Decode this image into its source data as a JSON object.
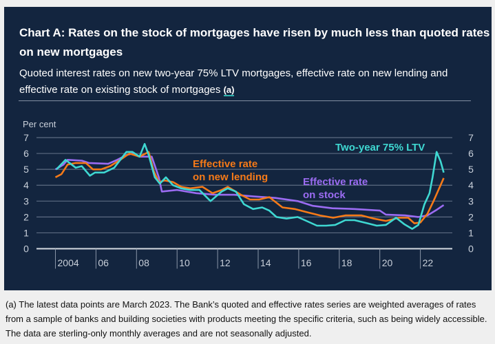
{
  "title": "Chart A: Rates on the stock of mortgages have risen by much less than quoted rates on new mortgages",
  "subtitle": "Quoted interest rates on new two-year 75% LTV mortgages, effective rate on new lending and effective rate on existing stock of mortgages",
  "subtitle_ref": "(a)",
  "footnote": "(a) The latest data points are March 2023. The Bank’s quoted and effective rates series are weighted averages of rates from a sample of banks and building societies with products meeting the specific criteria, such as being widely accessible. The data are sterling-only monthly averages and are not seasonally adjusted.",
  "colors": {
    "background": "#13253f",
    "quoted": "#3fd8d2",
    "new_lending": "#f67a18",
    "stock": "#9b6cf2"
  },
  "chart_data": {
    "type": "line",
    "ylabel": "Per cent",
    "ylim": [
      0,
      7
    ],
    "yticks": [
      "0",
      "1",
      "2",
      "3",
      "4",
      "5",
      "6",
      "7"
    ],
    "xlim": [
      2003.3,
      2024.0
    ],
    "xticks": [
      {
        "v": 2004,
        "label": "2004"
      },
      {
        "v": 2006,
        "label": "06"
      },
      {
        "v": 2008,
        "label": "08"
      },
      {
        "v": 2010,
        "label": "10"
      },
      {
        "v": 2012,
        "label": "12"
      },
      {
        "v": 2014,
        "label": "14"
      },
      {
        "v": 2016,
        "label": "16"
      },
      {
        "v": 2018,
        "label": "18"
      },
      {
        "v": 2020,
        "label": "20"
      },
      {
        "v": 2022,
        "label": "22"
      }
    ],
    "grid": true,
    "series": [
      {
        "name": "Two-year 75% LTV",
        "color_key": "quoted",
        "points": [
          [
            2004.05,
            5.0
          ],
          [
            2004.5,
            5.6
          ],
          [
            2005.0,
            5.1
          ],
          [
            2005.3,
            5.2
          ],
          [
            2005.7,
            4.6
          ],
          [
            2005.95,
            4.8
          ],
          [
            2006.4,
            4.8
          ],
          [
            2006.9,
            5.1
          ],
          [
            2007.5,
            6.1
          ],
          [
            2007.8,
            6.1
          ],
          [
            2008.15,
            5.8
          ],
          [
            2008.4,
            6.6
          ],
          [
            2008.6,
            5.9
          ],
          [
            2008.9,
            4.5
          ],
          [
            2009.15,
            4.1
          ],
          [
            2009.45,
            4.5
          ],
          [
            2009.8,
            4.0
          ],
          [
            2010.2,
            3.8
          ],
          [
            2010.65,
            3.7
          ],
          [
            2011.1,
            3.7
          ],
          [
            2011.65,
            3.0
          ],
          [
            2012.2,
            3.6
          ],
          [
            2012.5,
            3.8
          ],
          [
            2012.9,
            3.6
          ],
          [
            2013.3,
            2.8
          ],
          [
            2013.75,
            2.5
          ],
          [
            2014.2,
            2.6
          ],
          [
            2014.55,
            2.4
          ],
          [
            2014.9,
            2.0
          ],
          [
            2015.4,
            1.9
          ],
          [
            2015.95,
            2.0
          ],
          [
            2016.3,
            1.8
          ],
          [
            2016.9,
            1.45
          ],
          [
            2017.35,
            1.45
          ],
          [
            2017.8,
            1.5
          ],
          [
            2018.3,
            1.8
          ],
          [
            2018.75,
            1.8
          ],
          [
            2019.4,
            1.6
          ],
          [
            2019.85,
            1.45
          ],
          [
            2020.3,
            1.5
          ],
          [
            2020.8,
            1.95
          ],
          [
            2021.2,
            1.55
          ],
          [
            2021.6,
            1.25
          ],
          [
            2021.9,
            1.5
          ],
          [
            2022.2,
            2.8
          ],
          [
            2022.45,
            3.5
          ],
          [
            2022.6,
            4.5
          ],
          [
            2022.8,
            6.1
          ],
          [
            2023.0,
            5.5
          ],
          [
            2023.15,
            4.8
          ]
        ]
      },
      {
        "name": "Effective rate on new lending",
        "color_key": "new_lending",
        "points": [
          [
            2004.0,
            4.5
          ],
          [
            2004.3,
            4.7
          ],
          [
            2004.6,
            5.3
          ],
          [
            2005.0,
            5.4
          ],
          [
            2005.5,
            5.4
          ],
          [
            2005.85,
            5.0
          ],
          [
            2006.25,
            5.0
          ],
          [
            2006.7,
            5.2
          ],
          [
            2007.2,
            5.6
          ],
          [
            2007.65,
            6.0
          ],
          [
            2008.15,
            5.8
          ],
          [
            2008.6,
            6.1
          ],
          [
            2008.85,
            4.9
          ],
          [
            2009.1,
            4.2
          ],
          [
            2009.4,
            4.3
          ],
          [
            2009.8,
            4.2
          ],
          [
            2010.2,
            3.9
          ],
          [
            2010.65,
            3.8
          ],
          [
            2011.25,
            3.9
          ],
          [
            2011.75,
            3.5
          ],
          [
            2012.2,
            3.7
          ],
          [
            2012.5,
            3.9
          ],
          [
            2013.15,
            3.4
          ],
          [
            2013.6,
            3.1
          ],
          [
            2014.05,
            3.1
          ],
          [
            2014.55,
            3.25
          ],
          [
            2015.2,
            2.6
          ],
          [
            2015.8,
            2.5
          ],
          [
            2016.4,
            2.3
          ],
          [
            2017.05,
            2.1
          ],
          [
            2017.7,
            1.95
          ],
          [
            2018.3,
            2.1
          ],
          [
            2019.1,
            2.1
          ],
          [
            2019.7,
            1.9
          ],
          [
            2020.3,
            1.75
          ],
          [
            2020.95,
            1.95
          ],
          [
            2021.4,
            1.95
          ],
          [
            2021.7,
            1.6
          ],
          [
            2022.0,
            1.65
          ],
          [
            2022.35,
            2.2
          ],
          [
            2022.65,
            3.0
          ],
          [
            2023.15,
            4.45
          ]
        ]
      },
      {
        "name": "Effective rate on stock",
        "color_key": "stock",
        "points": [
          [
            2004.0,
            5.0
          ],
          [
            2004.4,
            5.3
          ],
          [
            2004.6,
            5.6
          ],
          [
            2005.3,
            5.55
          ],
          [
            2005.65,
            5.4
          ],
          [
            2006.6,
            5.35
          ],
          [
            2007.05,
            5.6
          ],
          [
            2007.5,
            5.9
          ],
          [
            2007.8,
            6.0
          ],
          [
            2008.15,
            5.8
          ],
          [
            2008.75,
            5.8
          ],
          [
            2009.1,
            4.5
          ],
          [
            2009.25,
            3.6
          ],
          [
            2010.0,
            3.7
          ],
          [
            2010.95,
            3.5
          ],
          [
            2011.9,
            3.4
          ],
          [
            2012.8,
            3.4
          ],
          [
            2013.75,
            3.3
          ],
          [
            2014.85,
            3.2
          ],
          [
            2015.95,
            3.0
          ],
          [
            2016.7,
            2.7
          ],
          [
            2017.65,
            2.55
          ],
          [
            2018.75,
            2.5
          ],
          [
            2020.0,
            2.4
          ],
          [
            2020.3,
            2.15
          ],
          [
            2021.25,
            2.1
          ],
          [
            2021.9,
            2.0
          ],
          [
            2022.35,
            2.1
          ],
          [
            2022.8,
            2.45
          ],
          [
            2023.15,
            2.75
          ]
        ]
      }
    ],
    "annotations": [
      {
        "series": "Two-year 75% LTV",
        "lines": [
          "Two-year 75% LTV"
        ]
      },
      {
        "series": "Effective rate on new lending",
        "lines": [
          "Effective rate",
          "on new lending"
        ]
      },
      {
        "series": "Effective rate on stock",
        "lines": [
          "Effective rate",
          "on stock"
        ]
      }
    ]
  }
}
